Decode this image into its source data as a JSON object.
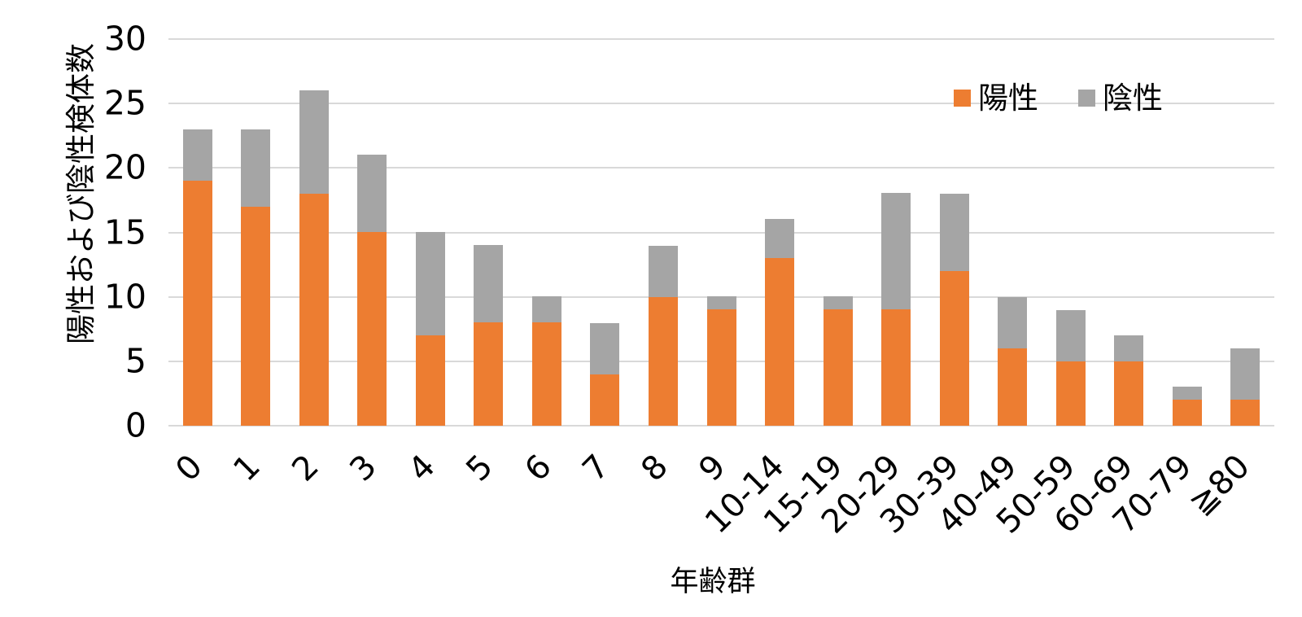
{
  "chart_data": {
    "type": "bar",
    "stacked": true,
    "title": "",
    "xlabel": "年齢群",
    "ylabel": "陽性および陰性検体数",
    "categories": [
      "0",
      "1",
      "2",
      "3",
      "4",
      "5",
      "6",
      "7",
      "8",
      "9",
      "10-14",
      "15-19",
      "20-29",
      "30-39",
      "40-49",
      "50-59",
      "60-69",
      "70-79",
      "≧80"
    ],
    "series": [
      {
        "name": "陽性",
        "color": "#ED7D31",
        "values": [
          19,
          17,
          18,
          15,
          7,
          8,
          8,
          4,
          10,
          9,
          13,
          9,
          9,
          12,
          6,
          5,
          5,
          2,
          2
        ]
      },
      {
        "name": "陰性",
        "color": "#A5A5A5",
        "values": [
          4,
          6,
          8,
          6,
          8,
          6,
          2,
          4,
          4,
          1,
          3,
          1,
          9,
          6,
          4,
          4,
          2,
          1,
          4
        ]
      }
    ],
    "stack_totals": [
      23,
      23,
      26,
      21,
      15,
      14,
      10,
      8,
      14,
      10,
      16,
      10,
      18,
      18,
      10,
      9,
      7,
      3,
      6
    ],
    "ylim": [
      0,
      30
    ],
    "yticks": [
      0,
      5,
      10,
      15,
      20,
      25,
      30
    ],
    "grid": true,
    "legend_position": "top-right",
    "colors": {
      "positive": "#ED7D31",
      "negative": "#A5A5A5",
      "gridline": "#D9D9D9",
      "text": "#000000",
      "background": "#FFFFFF"
    }
  }
}
